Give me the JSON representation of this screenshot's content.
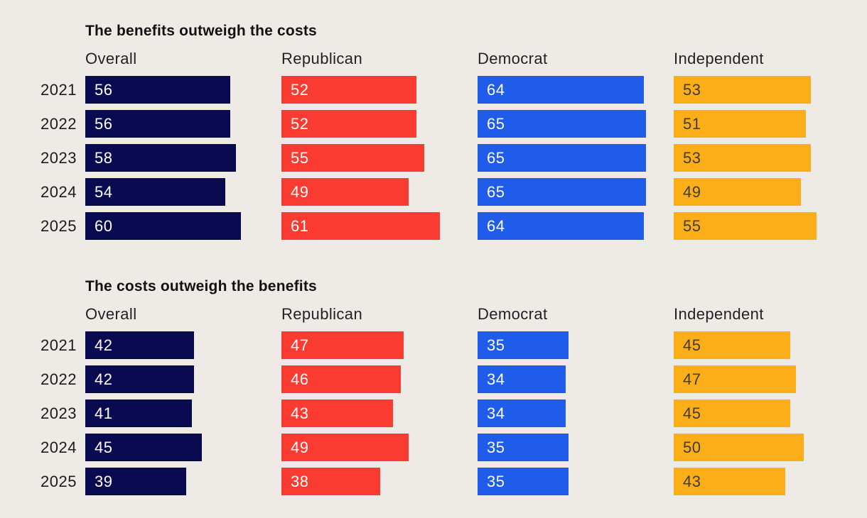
{
  "page": {
    "background_color": "#EEEBE7",
    "text_color": "#1b1b1b"
  },
  "chart_data": [
    {
      "type": "bar",
      "orientation": "horizontal",
      "title": "The benefits outweigh the costs",
      "categories": [
        "2021",
        "2022",
        "2023",
        "2024",
        "2025"
      ],
      "series": [
        {
          "name": "Overall",
          "color": "#0A0A50",
          "label_color": "#FFFFFF",
          "values": [
            56,
            56,
            58,
            54,
            60
          ]
        },
        {
          "name": "Republican",
          "color": "#FA3B31",
          "label_color": "#FFFFFF",
          "values": [
            52,
            52,
            55,
            49,
            61
          ]
        },
        {
          "name": "Democrat",
          "color": "#1E5CE9",
          "label_color": "#FFFFFF",
          "values": [
            64,
            65,
            65,
            65,
            64
          ]
        },
        {
          "name": "Independent",
          "color": "#FCAE18",
          "label_color": "#3C3C3C",
          "values": [
            53,
            51,
            53,
            49,
            55
          ]
        }
      ],
      "data_labels": true,
      "grid": false,
      "axes_visible": false,
      "legend_position": "column-headers"
    },
    {
      "type": "bar",
      "orientation": "horizontal",
      "title": "The costs outweigh the benefits",
      "categories": [
        "2021",
        "2022",
        "2023",
        "2024",
        "2025"
      ],
      "series": [
        {
          "name": "Overall",
          "color": "#0A0A50",
          "label_color": "#FFFFFF",
          "values": [
            42,
            42,
            41,
            45,
            39
          ]
        },
        {
          "name": "Republican",
          "color": "#FA3B31",
          "label_color": "#FFFFFF",
          "values": [
            47,
            46,
            43,
            49,
            38
          ]
        },
        {
          "name": "Democrat",
          "color": "#1E5CE9",
          "label_color": "#FFFFFF",
          "values": [
            35,
            34,
            34,
            35,
            35
          ]
        },
        {
          "name": "Independent",
          "color": "#FCAE18",
          "label_color": "#3C3C3C",
          "values": [
            45,
            47,
            45,
            50,
            43
          ]
        }
      ],
      "data_labels": true,
      "grid": false,
      "axes_visible": false,
      "legend_position": "column-headers"
    }
  ]
}
